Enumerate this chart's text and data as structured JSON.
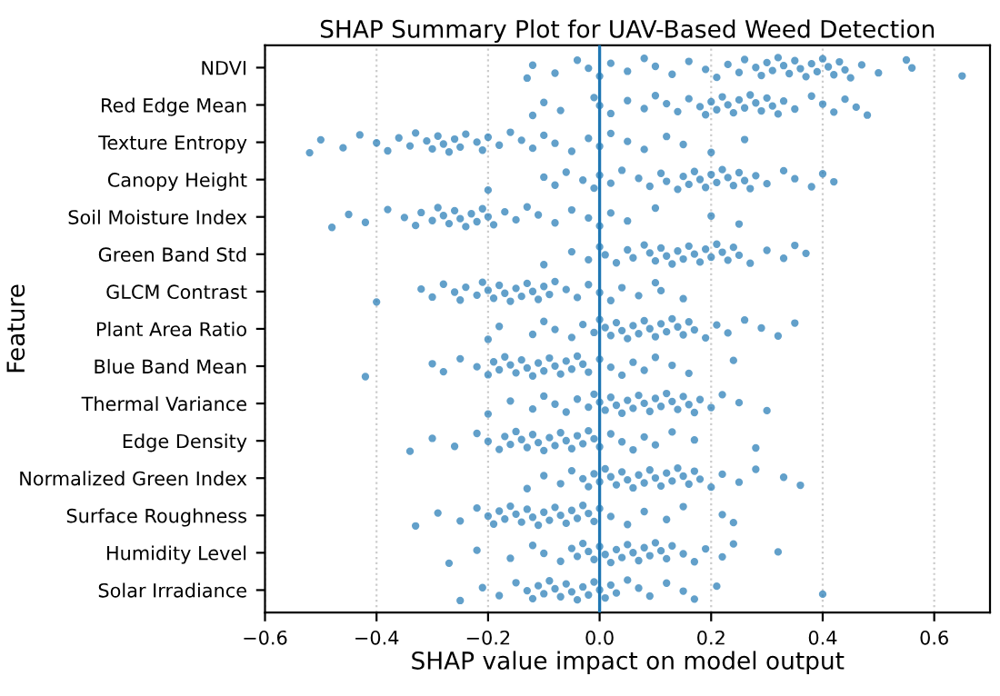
{
  "chart_data": {
    "type": "scatter",
    "orientation": "horizontal",
    "title": "SHAP Summary Plot for UAV-Based Weed Detection",
    "xlabel": "SHAP value impact on model output",
    "ylabel": "Feature",
    "categories": [
      "NDVI",
      "Red Edge Mean",
      "Texture Entropy",
      "Canopy Height",
      "Soil Moisture Index",
      "Green Band Std",
      "GLCM Contrast",
      "Plant Area Ratio",
      "Blue Band Mean",
      "Thermal Variance",
      "Edge Density",
      "Normalized Green Index",
      "Surface Roughness",
      "Humidity Level",
      "Solar Irradiance"
    ],
    "series": [
      {
        "color": "#1f77b4",
        "x": [
          "NDVI",
          "NDVI",
          "NDVI",
          "NDVI",
          "NDVI",
          "NDVI",
          "NDVI",
          "NDVI",
          "NDVI",
          "NDVI",
          "NDVI",
          "NDVI",
          "NDVI",
          "NDVI",
          "NDVI",
          "NDVI",
          "NDVI",
          "NDVI",
          "NDVI",
          "NDVI",
          "NDVI",
          "NDVI",
          "NDVI",
          "NDVI",
          "NDVI",
          "NDVI",
          "NDVI",
          "NDVI",
          "NDVI",
          "NDVI",
          "NDVI",
          "NDVI",
          "NDVI",
          "NDVI",
          "NDVI",
          "NDVI",
          "NDVI",
          "NDVI",
          "NDVI",
          "NDVI"
        ],
        "values": [
          -0.13,
          -0.12,
          -0.08,
          -0.04,
          -0.02,
          0.0,
          0.02,
          0.05,
          0.08,
          0.1,
          0.13,
          0.16,
          0.19,
          0.21,
          0.23,
          0.25,
          0.26,
          0.28,
          0.29,
          0.3,
          0.31,
          0.32,
          0.33,
          0.34,
          0.35,
          0.36,
          0.37,
          0.38,
          0.39,
          0.4,
          0.41,
          0.42,
          0.43,
          0.44,
          0.45,
          0.47,
          0.5,
          0.55,
          0.56,
          0.65
        ]
      },
      {
        "color": "#1f77b4",
        "x": [
          "Red Edge Mean",
          "Red Edge Mean",
          "Red Edge Mean",
          "Red Edge Mean",
          "Red Edge Mean",
          "Red Edge Mean",
          "Red Edge Mean",
          "Red Edge Mean",
          "Red Edge Mean",
          "Red Edge Mean",
          "Red Edge Mean",
          "Red Edge Mean",
          "Red Edge Mean",
          "Red Edge Mean",
          "Red Edge Mean",
          "Red Edge Mean",
          "Red Edge Mean",
          "Red Edge Mean",
          "Red Edge Mean",
          "Red Edge Mean",
          "Red Edge Mean",
          "Red Edge Mean",
          "Red Edge Mean",
          "Red Edge Mean",
          "Red Edge Mean",
          "Red Edge Mean",
          "Red Edge Mean",
          "Red Edge Mean",
          "Red Edge Mean",
          "Red Edge Mean",
          "Red Edge Mean",
          "Red Edge Mean",
          "Red Edge Mean",
          "Red Edge Mean",
          "Red Edge Mean"
        ],
        "values": [
          -0.12,
          -0.1,
          -0.07,
          -0.01,
          0.0,
          0.02,
          0.05,
          0.08,
          0.1,
          0.12,
          0.14,
          0.16,
          0.18,
          0.19,
          0.2,
          0.21,
          0.22,
          0.23,
          0.24,
          0.25,
          0.26,
          0.27,
          0.28,
          0.29,
          0.3,
          0.31,
          0.32,
          0.33,
          0.35,
          0.38,
          0.4,
          0.42,
          0.44,
          0.46,
          0.48
        ]
      },
      {
        "color": "#1f77b4",
        "x": [
          "Texture Entropy",
          "Texture Entropy",
          "Texture Entropy",
          "Texture Entropy",
          "Texture Entropy",
          "Texture Entropy",
          "Texture Entropy",
          "Texture Entropy",
          "Texture Entropy",
          "Texture Entropy",
          "Texture Entropy",
          "Texture Entropy",
          "Texture Entropy",
          "Texture Entropy",
          "Texture Entropy",
          "Texture Entropy",
          "Texture Entropy",
          "Texture Entropy",
          "Texture Entropy",
          "Texture Entropy",
          "Texture Entropy",
          "Texture Entropy",
          "Texture Entropy",
          "Texture Entropy",
          "Texture Entropy",
          "Texture Entropy",
          "Texture Entropy",
          "Texture Entropy",
          "Texture Entropy",
          "Texture Entropy",
          "Texture Entropy",
          "Texture Entropy",
          "Texture Entropy",
          "Texture Entropy",
          "Texture Entropy",
          "Texture Entropy"
        ],
        "values": [
          -0.52,
          -0.5,
          -0.46,
          -0.43,
          -0.4,
          -0.38,
          -0.36,
          -0.34,
          -0.33,
          -0.31,
          -0.3,
          -0.29,
          -0.28,
          -0.27,
          -0.26,
          -0.25,
          -0.24,
          -0.22,
          -0.21,
          -0.2,
          -0.18,
          -0.16,
          -0.14,
          -0.12,
          -0.1,
          -0.08,
          -0.05,
          -0.02,
          0.0,
          0.02,
          0.05,
          0.08,
          0.12,
          0.15,
          0.2,
          0.26
        ]
      },
      {
        "color": "#1f77b4",
        "x": [
          "Canopy Height",
          "Canopy Height",
          "Canopy Height",
          "Canopy Height",
          "Canopy Height",
          "Canopy Height",
          "Canopy Height",
          "Canopy Height",
          "Canopy Height",
          "Canopy Height",
          "Canopy Height",
          "Canopy Height",
          "Canopy Height",
          "Canopy Height",
          "Canopy Height",
          "Canopy Height",
          "Canopy Height",
          "Canopy Height",
          "Canopy Height",
          "Canopy Height",
          "Canopy Height",
          "Canopy Height",
          "Canopy Height",
          "Canopy Height",
          "Canopy Height",
          "Canopy Height",
          "Canopy Height",
          "Canopy Height",
          "Canopy Height",
          "Canopy Height",
          "Canopy Height",
          "Canopy Height",
          "Canopy Height",
          "Canopy Height"
        ],
        "values": [
          -0.2,
          -0.1,
          -0.08,
          -0.06,
          -0.03,
          -0.01,
          0.0,
          0.02,
          0.04,
          0.07,
          0.09,
          0.11,
          0.12,
          0.14,
          0.15,
          0.16,
          0.17,
          0.18,
          0.19,
          0.2,
          0.21,
          0.22,
          0.23,
          0.24,
          0.25,
          0.26,
          0.27,
          0.28,
          0.3,
          0.33,
          0.35,
          0.38,
          0.4,
          0.42
        ]
      },
      {
        "color": "#1f77b4",
        "x": [
          "Soil Moisture Index",
          "Soil Moisture Index",
          "Soil Moisture Index",
          "Soil Moisture Index",
          "Soil Moisture Index",
          "Soil Moisture Index",
          "Soil Moisture Index",
          "Soil Moisture Index",
          "Soil Moisture Index",
          "Soil Moisture Index",
          "Soil Moisture Index",
          "Soil Moisture Index",
          "Soil Moisture Index",
          "Soil Moisture Index",
          "Soil Moisture Index",
          "Soil Moisture Index",
          "Soil Moisture Index",
          "Soil Moisture Index",
          "Soil Moisture Index",
          "Soil Moisture Index",
          "Soil Moisture Index",
          "Soil Moisture Index",
          "Soil Moisture Index",
          "Soil Moisture Index",
          "Soil Moisture Index",
          "Soil Moisture Index",
          "Soil Moisture Index",
          "Soil Moisture Index",
          "Soil Moisture Index",
          "Soil Moisture Index",
          "Soil Moisture Index",
          "Soil Moisture Index"
        ],
        "values": [
          -0.48,
          -0.45,
          -0.42,
          -0.38,
          -0.35,
          -0.33,
          -0.32,
          -0.3,
          -0.29,
          -0.28,
          -0.27,
          -0.26,
          -0.25,
          -0.24,
          -0.23,
          -0.22,
          -0.21,
          -0.2,
          -0.19,
          -0.17,
          -0.15,
          -0.13,
          -0.11,
          -0.08,
          -0.05,
          -0.02,
          0.0,
          0.02,
          0.05,
          0.1,
          0.2,
          0.25
        ]
      },
      {
        "color": "#1f77b4",
        "x": [
          "Green Band Std",
          "Green Band Std",
          "Green Band Std",
          "Green Band Std",
          "Green Band Std",
          "Green Band Std",
          "Green Band Std",
          "Green Band Std",
          "Green Band Std",
          "Green Band Std",
          "Green Band Std",
          "Green Band Std",
          "Green Band Std",
          "Green Band Std",
          "Green Band Std",
          "Green Band Std",
          "Green Band Std",
          "Green Band Std",
          "Green Band Std",
          "Green Band Std",
          "Green Band Std",
          "Green Band Std",
          "Green Band Std",
          "Green Band Std",
          "Green Band Std",
          "Green Band Std",
          "Green Band Std",
          "Green Band Std",
          "Green Band Std",
          "Green Band Std",
          "Green Band Std"
        ],
        "values": [
          -0.1,
          -0.05,
          -0.02,
          0.0,
          0.01,
          0.03,
          0.05,
          0.06,
          0.08,
          0.09,
          0.1,
          0.11,
          0.12,
          0.13,
          0.14,
          0.15,
          0.16,
          0.17,
          0.18,
          0.19,
          0.2,
          0.21,
          0.22,
          0.23,
          0.24,
          0.25,
          0.27,
          0.3,
          0.33,
          0.35,
          0.37
        ]
      },
      {
        "color": "#1f77b4",
        "x": [
          "GLCM Contrast",
          "GLCM Contrast",
          "GLCM Contrast",
          "GLCM Contrast",
          "GLCM Contrast",
          "GLCM Contrast",
          "GLCM Contrast",
          "GLCM Contrast",
          "GLCM Contrast",
          "GLCM Contrast",
          "GLCM Contrast",
          "GLCM Contrast",
          "GLCM Contrast",
          "GLCM Contrast",
          "GLCM Contrast",
          "GLCM Contrast",
          "GLCM Contrast",
          "GLCM Contrast",
          "GLCM Contrast",
          "GLCM Contrast",
          "GLCM Contrast",
          "GLCM Contrast",
          "GLCM Contrast",
          "GLCM Contrast",
          "GLCM Contrast",
          "GLCM Contrast",
          "GLCM Contrast",
          "GLCM Contrast",
          "GLCM Contrast",
          "GLCM Contrast",
          "GLCM Contrast",
          "GLCM Contrast"
        ],
        "values": [
          -0.4,
          -0.32,
          -0.3,
          -0.28,
          -0.26,
          -0.25,
          -0.24,
          -0.22,
          -0.21,
          -0.2,
          -0.19,
          -0.18,
          -0.17,
          -0.16,
          -0.15,
          -0.14,
          -0.13,
          -0.12,
          -0.11,
          -0.1,
          -0.09,
          -0.08,
          -0.06,
          -0.04,
          -0.02,
          0.0,
          0.02,
          0.04,
          0.07,
          0.1,
          0.11,
          0.15
        ]
      },
      {
        "color": "#1f77b4",
        "x": [
          "Plant Area Ratio",
          "Plant Area Ratio",
          "Plant Area Ratio",
          "Plant Area Ratio",
          "Plant Area Ratio",
          "Plant Area Ratio",
          "Plant Area Ratio",
          "Plant Area Ratio",
          "Plant Area Ratio",
          "Plant Area Ratio",
          "Plant Area Ratio",
          "Plant Area Ratio",
          "Plant Area Ratio",
          "Plant Area Ratio",
          "Plant Area Ratio",
          "Plant Area Ratio",
          "Plant Area Ratio",
          "Plant Area Ratio",
          "Plant Area Ratio",
          "Plant Area Ratio",
          "Plant Area Ratio",
          "Plant Area Ratio",
          "Plant Area Ratio",
          "Plant Area Ratio",
          "Plant Area Ratio",
          "Plant Area Ratio",
          "Plant Area Ratio",
          "Plant Area Ratio",
          "Plant Area Ratio",
          "Plant Area Ratio",
          "Plant Area Ratio",
          "Plant Area Ratio",
          "Plant Area Ratio"
        ],
        "values": [
          -0.2,
          -0.18,
          -0.12,
          -0.1,
          -0.08,
          -0.05,
          -0.03,
          -0.01,
          0.0,
          0.01,
          0.02,
          0.03,
          0.04,
          0.05,
          0.06,
          0.07,
          0.08,
          0.09,
          0.1,
          0.11,
          0.12,
          0.13,
          0.14,
          0.15,
          0.16,
          0.17,
          0.19,
          0.21,
          0.23,
          0.26,
          0.29,
          0.32,
          0.35
        ]
      },
      {
        "color": "#1f77b4",
        "x": [
          "Blue Band Mean",
          "Blue Band Mean",
          "Blue Band Mean",
          "Blue Band Mean",
          "Blue Band Mean",
          "Blue Band Mean",
          "Blue Band Mean",
          "Blue Band Mean",
          "Blue Band Mean",
          "Blue Band Mean",
          "Blue Band Mean",
          "Blue Band Mean",
          "Blue Band Mean",
          "Blue Band Mean",
          "Blue Band Mean",
          "Blue Band Mean",
          "Blue Band Mean",
          "Blue Band Mean",
          "Blue Band Mean",
          "Blue Band Mean",
          "Blue Band Mean",
          "Blue Band Mean",
          "Blue Band Mean",
          "Blue Band Mean",
          "Blue Band Mean",
          "Blue Band Mean",
          "Blue Band Mean",
          "Blue Band Mean",
          "Blue Band Mean",
          "Blue Band Mean",
          "Blue Band Mean",
          "Blue Band Mean",
          "Blue Band Mean"
        ],
        "values": [
          -0.42,
          -0.3,
          -0.28,
          -0.25,
          -0.22,
          -0.2,
          -0.19,
          -0.18,
          -0.17,
          -0.16,
          -0.15,
          -0.14,
          -0.13,
          -0.12,
          -0.11,
          -0.1,
          -0.09,
          -0.08,
          -0.07,
          -0.06,
          -0.05,
          -0.04,
          -0.03,
          -0.02,
          0.0,
          0.02,
          0.04,
          0.06,
          0.08,
          0.1,
          0.13,
          0.16,
          0.24
        ]
      },
      {
        "color": "#1f77b4",
        "x": [
          "Thermal Variance",
          "Thermal Variance",
          "Thermal Variance",
          "Thermal Variance",
          "Thermal Variance",
          "Thermal Variance",
          "Thermal Variance",
          "Thermal Variance",
          "Thermal Variance",
          "Thermal Variance",
          "Thermal Variance",
          "Thermal Variance",
          "Thermal Variance",
          "Thermal Variance",
          "Thermal Variance",
          "Thermal Variance",
          "Thermal Variance",
          "Thermal Variance",
          "Thermal Variance",
          "Thermal Variance",
          "Thermal Variance",
          "Thermal Variance",
          "Thermal Variance",
          "Thermal Variance",
          "Thermal Variance",
          "Thermal Variance",
          "Thermal Variance",
          "Thermal Variance",
          "Thermal Variance",
          "Thermal Variance",
          "Thermal Variance",
          "Thermal Variance"
        ],
        "values": [
          -0.2,
          -0.16,
          -0.12,
          -0.1,
          -0.08,
          -0.06,
          -0.04,
          -0.02,
          -0.01,
          0.0,
          0.01,
          0.02,
          0.03,
          0.04,
          0.05,
          0.06,
          0.07,
          0.08,
          0.09,
          0.1,
          0.11,
          0.12,
          0.13,
          0.14,
          0.15,
          0.16,
          0.17,
          0.18,
          0.2,
          0.22,
          0.25,
          0.3
        ]
      },
      {
        "color": "#1f77b4",
        "x": [
          "Edge Density",
          "Edge Density",
          "Edge Density",
          "Edge Density",
          "Edge Density",
          "Edge Density",
          "Edge Density",
          "Edge Density",
          "Edge Density",
          "Edge Density",
          "Edge Density",
          "Edge Density",
          "Edge Density",
          "Edge Density",
          "Edge Density",
          "Edge Density",
          "Edge Density",
          "Edge Density",
          "Edge Density",
          "Edge Density",
          "Edge Density",
          "Edge Density",
          "Edge Density",
          "Edge Density",
          "Edge Density",
          "Edge Density",
          "Edge Density",
          "Edge Density",
          "Edge Density",
          "Edge Density",
          "Edge Density",
          "Edge Density"
        ],
        "values": [
          -0.34,
          -0.3,
          -0.26,
          -0.22,
          -0.2,
          -0.18,
          -0.17,
          -0.16,
          -0.15,
          -0.14,
          -0.13,
          -0.12,
          -0.11,
          -0.1,
          -0.09,
          -0.08,
          -0.07,
          -0.06,
          -0.05,
          -0.04,
          -0.03,
          -0.02,
          -0.01,
          0.0,
          0.02,
          0.04,
          0.06,
          0.08,
          0.1,
          0.13,
          0.17,
          0.28
        ]
      },
      {
        "color": "#1f77b4",
        "x": [
          "Normalized Green Index",
          "Normalized Green Index",
          "Normalized Green Index",
          "Normalized Green Index",
          "Normalized Green Index",
          "Normalized Green Index",
          "Normalized Green Index",
          "Normalized Green Index",
          "Normalized Green Index",
          "Normalized Green Index",
          "Normalized Green Index",
          "Normalized Green Index",
          "Normalized Green Index",
          "Normalized Green Index",
          "Normalized Green Index",
          "Normalized Green Index",
          "Normalized Green Index",
          "Normalized Green Index",
          "Normalized Green Index",
          "Normalized Green Index",
          "Normalized Green Index",
          "Normalized Green Index",
          "Normalized Green Index",
          "Normalized Green Index",
          "Normalized Green Index",
          "Normalized Green Index",
          "Normalized Green Index",
          "Normalized Green Index",
          "Normalized Green Index",
          "Normalized Green Index",
          "Normalized Green Index",
          "Normalized Green Index"
        ],
        "values": [
          -0.13,
          -0.1,
          -0.07,
          -0.05,
          -0.03,
          -0.02,
          -0.01,
          0.0,
          0.01,
          0.02,
          0.03,
          0.04,
          0.05,
          0.06,
          0.07,
          0.08,
          0.09,
          0.1,
          0.11,
          0.12,
          0.13,
          0.14,
          0.15,
          0.16,
          0.17,
          0.18,
          0.2,
          0.22,
          0.25,
          0.28,
          0.33,
          0.36
        ]
      },
      {
        "color": "#1f77b4",
        "x": [
          "Surface Roughness",
          "Surface Roughness",
          "Surface Roughness",
          "Surface Roughness",
          "Surface Roughness",
          "Surface Roughness",
          "Surface Roughness",
          "Surface Roughness",
          "Surface Roughness",
          "Surface Roughness",
          "Surface Roughness",
          "Surface Roughness",
          "Surface Roughness",
          "Surface Roughness",
          "Surface Roughness",
          "Surface Roughness",
          "Surface Roughness",
          "Surface Roughness",
          "Surface Roughness",
          "Surface Roughness",
          "Surface Roughness",
          "Surface Roughness",
          "Surface Roughness",
          "Surface Roughness",
          "Surface Roughness",
          "Surface Roughness",
          "Surface Roughness",
          "Surface Roughness",
          "Surface Roughness",
          "Surface Roughness",
          "Surface Roughness",
          "Surface Roughness"
        ],
        "values": [
          -0.33,
          -0.29,
          -0.25,
          -0.22,
          -0.2,
          -0.19,
          -0.18,
          -0.17,
          -0.16,
          -0.15,
          -0.14,
          -0.13,
          -0.12,
          -0.11,
          -0.1,
          -0.09,
          -0.08,
          -0.07,
          -0.06,
          -0.05,
          -0.04,
          -0.03,
          -0.02,
          -0.01,
          0.0,
          0.02,
          0.05,
          0.08,
          0.12,
          0.15,
          0.22,
          0.24
        ]
      },
      {
        "color": "#1f77b4",
        "x": [
          "Humidity Level",
          "Humidity Level",
          "Humidity Level",
          "Humidity Level",
          "Humidity Level",
          "Humidity Level",
          "Humidity Level",
          "Humidity Level",
          "Humidity Level",
          "Humidity Level",
          "Humidity Level",
          "Humidity Level",
          "Humidity Level",
          "Humidity Level",
          "Humidity Level",
          "Humidity Level",
          "Humidity Level",
          "Humidity Level",
          "Humidity Level",
          "Humidity Level",
          "Humidity Level",
          "Humidity Level",
          "Humidity Level",
          "Humidity Level",
          "Humidity Level",
          "Humidity Level",
          "Humidity Level",
          "Humidity Level",
          "Humidity Level",
          "Humidity Level",
          "Humidity Level"
        ],
        "values": [
          -0.27,
          -0.22,
          -0.16,
          -0.12,
          -0.1,
          -0.07,
          -0.05,
          -0.04,
          -0.03,
          -0.02,
          -0.01,
          0.0,
          0.01,
          0.02,
          0.03,
          0.04,
          0.05,
          0.06,
          0.07,
          0.08,
          0.09,
          0.1,
          0.11,
          0.12,
          0.13,
          0.15,
          0.17,
          0.19,
          0.22,
          0.24,
          0.32
        ]
      },
      {
        "color": "#1f77b4",
        "x": [
          "Solar Irradiance",
          "Solar Irradiance",
          "Solar Irradiance",
          "Solar Irradiance",
          "Solar Irradiance",
          "Solar Irradiance",
          "Solar Irradiance",
          "Solar Irradiance",
          "Solar Irradiance",
          "Solar Irradiance",
          "Solar Irradiance",
          "Solar Irradiance",
          "Solar Irradiance",
          "Solar Irradiance",
          "Solar Irradiance",
          "Solar Irradiance",
          "Solar Irradiance",
          "Solar Irradiance",
          "Solar Irradiance",
          "Solar Irradiance",
          "Solar Irradiance",
          "Solar Irradiance",
          "Solar Irradiance",
          "Solar Irradiance",
          "Solar Irradiance",
          "Solar Irradiance",
          "Solar Irradiance",
          "Solar Irradiance",
          "Solar Irradiance"
        ],
        "values": [
          -0.25,
          -0.21,
          -0.18,
          -0.15,
          -0.13,
          -0.12,
          -0.11,
          -0.1,
          -0.09,
          -0.08,
          -0.07,
          -0.06,
          -0.05,
          -0.04,
          -0.03,
          -0.02,
          -0.01,
          0.0,
          0.01,
          0.02,
          0.03,
          0.05,
          0.07,
          0.09,
          0.12,
          0.15,
          0.17,
          0.21,
          0.4
        ]
      }
    ],
    "xlim": [
      -0.6,
      0.7
    ],
    "xticks": [
      {
        "value": -0.6,
        "label": "−0.6"
      },
      {
        "value": -0.4,
        "label": "−0.4"
      },
      {
        "value": -0.2,
        "label": "−0.2"
      },
      {
        "value": 0,
        "label": "0.0"
      },
      {
        "value": 0.2,
        "label": "0.2"
      },
      {
        "value": 0.4,
        "label": "0.4"
      },
      {
        "value": 0.6,
        "label": "0.6"
      }
    ],
    "ref_lines": [
      {
        "axis": "x",
        "value": 0,
        "color": "#1f77b4"
      }
    ],
    "grid": "x",
    "legend": false,
    "marker": "circle"
  }
}
